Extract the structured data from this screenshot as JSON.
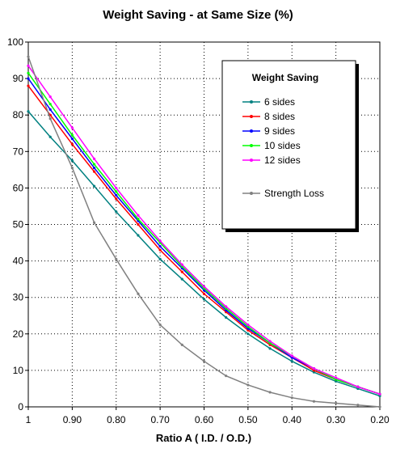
{
  "chart_data": {
    "type": "line",
    "title": "Weight Saving - at Same Size (%)",
    "xlabel": "Ratio A ( I.D. / O.D.)",
    "ylabel": "",
    "x_reversed": true,
    "xlim": [
      0.2,
      1.0
    ],
    "ylim": [
      0,
      100
    ],
    "x_ticks": [
      1.0,
      0.9,
      0.8,
      0.7,
      0.6,
      0.5,
      0.4,
      0.3,
      0.2
    ],
    "x_tick_labels": [
      "1",
      "0.90",
      "0.80",
      "0.70",
      "0.60",
      "0.50",
      "0.40",
      "0.30",
      "0.20"
    ],
    "y_ticks": [
      0,
      10,
      20,
      30,
      40,
      50,
      60,
      70,
      80,
      90,
      100
    ],
    "y_tick_labels": [
      "0",
      "10",
      "20",
      "30",
      "40",
      "50",
      "60",
      "70",
      "80",
      "90",
      "100"
    ],
    "grid": true,
    "legend": {
      "title": "Weight Saving",
      "placement": "top-right"
    },
    "x": [
      1.0,
      0.95,
      0.9,
      0.85,
      0.8,
      0.75,
      0.7,
      0.65,
      0.6,
      0.55,
      0.5,
      0.45,
      0.4,
      0.35,
      0.3,
      0.25,
      0.2
    ],
    "series": [
      {
        "name": "6 sides",
        "color": "#008080",
        "values": [
          81,
          74,
          67.5,
          60.5,
          53.5,
          47,
          40.5,
          35,
          29.5,
          24.5,
          20,
          16,
          12.5,
          9.5,
          7,
          5,
          3
        ]
      },
      {
        "name": "8 sides",
        "color": "#ff0000",
        "values": [
          88,
          80,
          72,
          64.5,
          57,
          50,
          43,
          37,
          31,
          26,
          21,
          17,
          13.5,
          10,
          7.5,
          5.5,
          3.5
        ]
      },
      {
        "name": "9 sides",
        "color": "#0000ff",
        "values": [
          90,
          81.5,
          73.5,
          65.5,
          58,
          51,
          44,
          38,
          32,
          26.5,
          21.5,
          17.5,
          13.5,
          10.5,
          7.5,
          5.5,
          3.5
        ]
      },
      {
        "name": "10 sides",
        "color": "#00ff00",
        "values": [
          91.5,
          83,
          74.5,
          66.5,
          59,
          51.5,
          45,
          38.5,
          32.5,
          27,
          22,
          17.5,
          14,
          10.5,
          7.5,
          5.5,
          3.5
        ]
      },
      {
        "name": "12 sides",
        "color": "#ff00ff",
        "values": [
          93.5,
          85,
          76.5,
          68,
          60,
          52.5,
          45.5,
          39,
          33,
          27.5,
          22.5,
          18,
          14,
          10.5,
          8,
          5.5,
          3.5
        ]
      },
      {
        "name": "Strength Loss",
        "color": "#808080",
        "values": [
          96,
          79,
          65.5,
          50.5,
          40.5,
          31,
          22.5,
          17,
          12.5,
          8.5,
          6,
          4,
          2.5,
          1.5,
          1,
          0.5,
          0
        ]
      }
    ]
  }
}
